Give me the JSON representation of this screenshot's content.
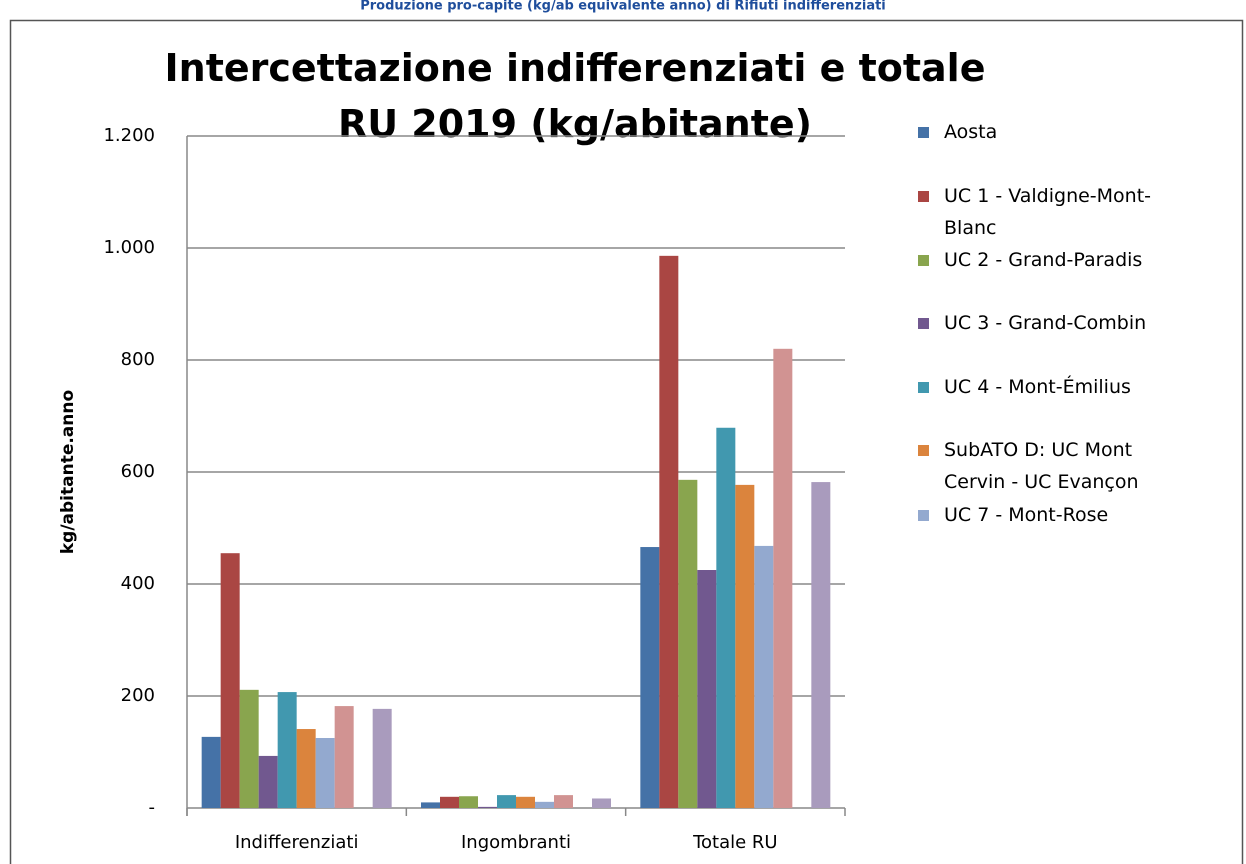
{
  "header": "Produzione pro-capite (kg/ab equivalente anno) di Rifiuti indifferenziati",
  "chart_data": {
    "type": "bar",
    "title": "Intercettazione indifferenziati e totale RU 2019 (kg/abitante)",
    "y_label": "kg/abitante.anno",
    "categories": [
      "Indifferenziati",
      "Ingombranti",
      "Totale RU"
    ],
    "series": [
      {
        "name": "Aosta",
        "color": "#4572a7",
        "values": [
          127,
          10,
          466
        ]
      },
      {
        "name": "UC 1 - Valdigne-Mont-Blanc",
        "color": "#aa4643",
        "values": [
          455,
          20,
          986
        ]
      },
      {
        "name": "UC 2 - Grand-Paradis",
        "color": "#89a54e",
        "values": [
          211,
          21,
          586
        ]
      },
      {
        "name": "UC 3 - Grand-Combin",
        "color": "#71588f",
        "values": [
          93,
          2,
          425
        ]
      },
      {
        "name": "UC 4 - Mont-Émilius",
        "color": "#4198af",
        "values": [
          207,
          23,
          679
        ]
      },
      {
        "name": "SubATO D: UC Mont Cervin - UC Evançon",
        "color": "#db843d",
        "values": [
          141,
          20,
          577
        ]
      },
      {
        "name": "UC 7 - Mont-Rose",
        "color": "#93a9cf",
        "values": [
          125,
          11,
          468
        ]
      },
      {
        "color": "#d19392",
        "values": [
          182,
          23,
          820
        ]
      },
      {
        "values": [
          null,
          null,
          null
        ]
      },
      {
        "color": "#a99bbd",
        "values": [
          177,
          17,
          582
        ]
      }
    ],
    "ylim": [
      0,
      1200
    ],
    "yticks": [
      {
        "value": 0,
        "label": "-"
      },
      200,
      400,
      600,
      800,
      {
        "value": 1000,
        "label": "1.000"
      },
      {
        "value": 1200,
        "label": "1.200"
      }
    ],
    "grid": true
  }
}
